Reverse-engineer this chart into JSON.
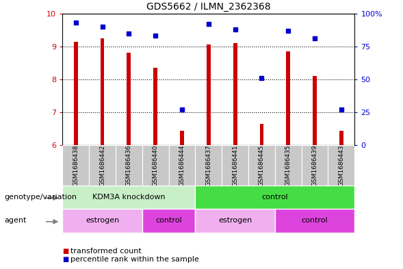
{
  "title": "GDS5662 / ILMN_2362368",
  "samples": [
    "GSM1686438",
    "GSM1686442",
    "GSM1686436",
    "GSM1686440",
    "GSM1686444",
    "GSM1686437",
    "GSM1686441",
    "GSM1686445",
    "GSM1686435",
    "GSM1686439",
    "GSM1686443"
  ],
  "bar_values": [
    9.15,
    9.25,
    8.8,
    8.35,
    6.45,
    9.05,
    9.1,
    6.65,
    8.85,
    8.1,
    6.45
  ],
  "dot_values": [
    93,
    90,
    85,
    83,
    27,
    92,
    88,
    51,
    87,
    81,
    27
  ],
  "ylim": [
    6,
    10
  ],
  "y2lim": [
    0,
    100
  ],
  "bar_color": "#cc0000",
  "dot_color": "#0000cc",
  "sample_bg": "#c8c8c8",
  "genotype_groups": [
    {
      "label": "KDM3A knockdown",
      "start": 0,
      "end": 5,
      "color": "#c8f0c8"
    },
    {
      "label": "control",
      "start": 5,
      "end": 11,
      "color": "#44dd44"
    }
  ],
  "agent_groups": [
    {
      "label": "estrogen",
      "start": 0,
      "end": 3,
      "color": "#f0b0f0"
    },
    {
      "label": "control",
      "start": 3,
      "end": 5,
      "color": "#dd44dd"
    },
    {
      "label": "estrogen",
      "start": 5,
      "end": 8,
      "color": "#f0b0f0"
    },
    {
      "label": "control",
      "start": 8,
      "end": 11,
      "color": "#dd44dd"
    }
  ],
  "legend_items": [
    {
      "label": "transformed count",
      "color": "#cc0000"
    },
    {
      "label": "percentile rank within the sample",
      "color": "#0000cc"
    }
  ],
  "yticks_left": [
    6,
    7,
    8,
    9,
    10
  ],
  "yticks_right": [
    0,
    25,
    50,
    75,
    100
  ],
  "ytick_labels_right": [
    "0",
    "25",
    "50",
    "75",
    "100%"
  ],
  "genotype_label": "genotype/variation",
  "agent_label": "agent",
  "bar_width": 0.15
}
